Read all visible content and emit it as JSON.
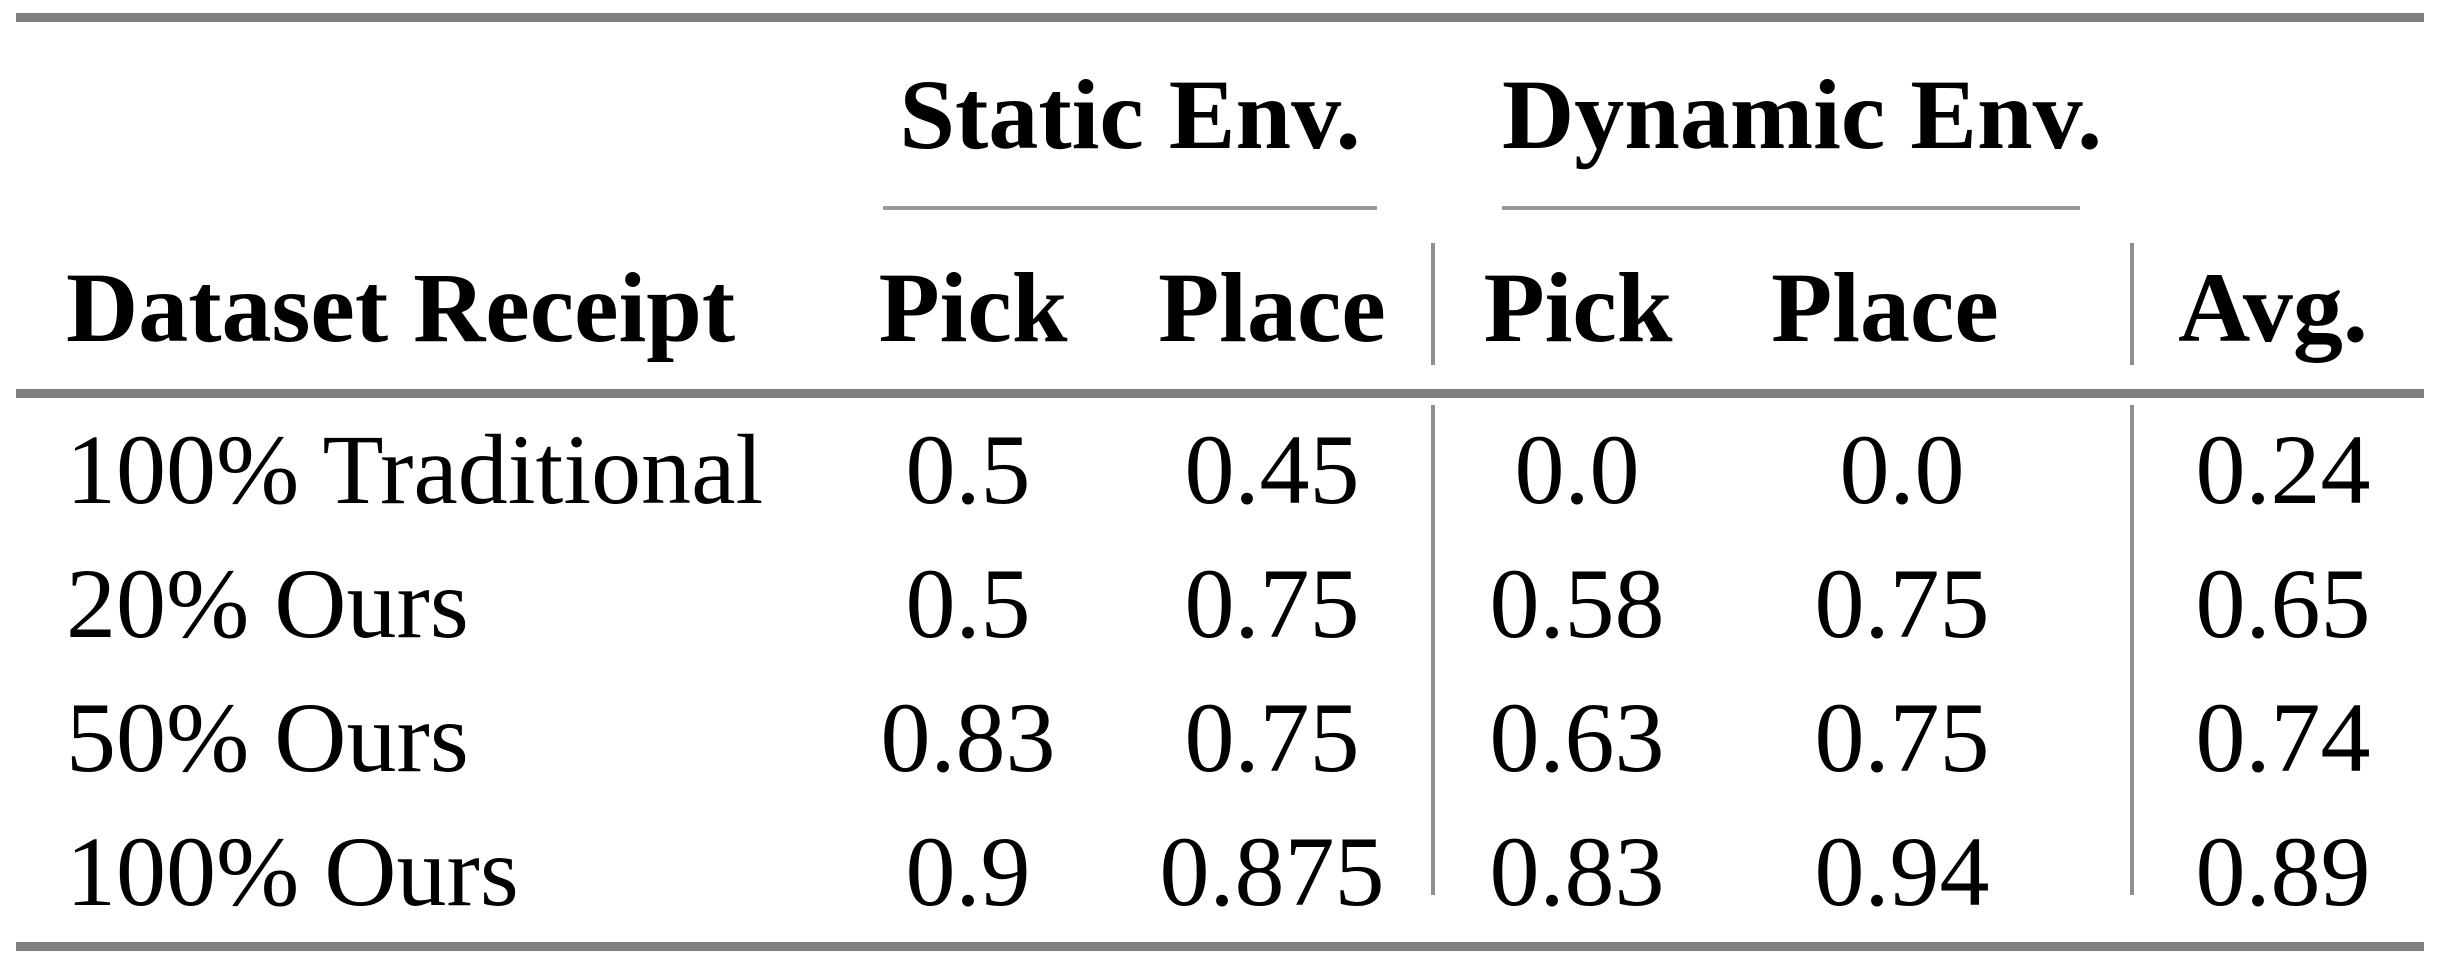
{
  "table": {
    "groups": [
      {
        "label": "Static Env."
      },
      {
        "label": "Dynamic Env."
      }
    ],
    "headers": {
      "row_label": "Dataset Receipt",
      "static_pick": "Pick",
      "static_place": "Place",
      "dynamic_pick": "Pick",
      "dynamic_place": "Place",
      "avg": "Avg."
    },
    "rows": [
      {
        "label": "100% Traditional",
        "values": [
          "0.5",
          "0.45",
          "0.0",
          "0.0",
          "0.24"
        ]
      },
      {
        "label": "20% Ours",
        "values": [
          "0.5",
          "0.75",
          "0.58",
          "0.75",
          "0.65"
        ]
      },
      {
        "label": "50% Ours",
        "values": [
          "0.83",
          "0.75",
          "0.63",
          "0.75",
          "0.74"
        ]
      },
      {
        "label": "100% Ours",
        "values": [
          "0.9",
          "0.875",
          "0.83",
          "0.94",
          "0.89"
        ]
      }
    ],
    "colors": {
      "rule": "#808080",
      "cmidrule": "#999999",
      "separator": "#8f8f8f",
      "text": "#000000"
    }
  },
  "chart_data": {
    "type": "table",
    "columns": [
      "Dataset Receipt",
      "Static Env. Pick",
      "Static Env. Place",
      "Dynamic Env. Pick",
      "Dynamic Env. Place",
      "Avg."
    ],
    "rows": [
      [
        "100% Traditional",
        0.5,
        0.45,
        0.0,
        0.0,
        0.24
      ],
      [
        "20% Ours",
        0.5,
        0.75,
        0.58,
        0.75,
        0.65
      ],
      [
        "50% Ours",
        0.83,
        0.75,
        0.63,
        0.75,
        0.74
      ],
      [
        "100% Ours",
        0.9,
        0.875,
        0.83,
        0.94,
        0.89
      ]
    ]
  }
}
